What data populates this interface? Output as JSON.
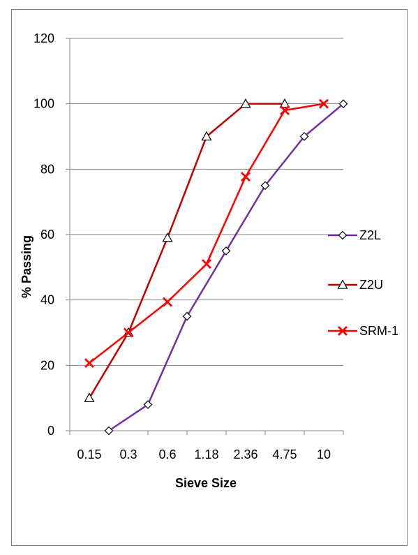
{
  "chart_data": {
    "type": "line",
    "xlabel": "Sieve Size",
    "ylabel": "% Passing",
    "categories": [
      "0.15",
      "0.3",
      "0.6",
      "1.18",
      "2.36",
      "4.75",
      "10"
    ],
    "ylim": [
      0,
      120
    ],
    "yticks": [
      0,
      20,
      40,
      60,
      80,
      100,
      120
    ],
    "grid": true,
    "legend_position": "right",
    "series": [
      {
        "name": "Z2L",
        "color": "#7030a0",
        "marker": "diamond",
        "points": [
          [
            0.5,
            0
          ],
          [
            1.5,
            8
          ],
          [
            2.5,
            35
          ],
          [
            3.5,
            55
          ],
          [
            4.5,
            75
          ],
          [
            5.5,
            90
          ],
          [
            6.5,
            100
          ]
        ]
      },
      {
        "name": "Z2U",
        "color": "#c00000",
        "marker": "triangle",
        "points": [
          [
            0,
            10
          ],
          [
            1,
            30
          ],
          [
            2,
            59
          ],
          [
            3,
            90
          ],
          [
            4,
            100
          ],
          [
            5,
            100
          ]
        ]
      },
      {
        "name": "SRM-1",
        "color": "#ff0000",
        "marker": "x",
        "points": [
          [
            0,
            20.7
          ],
          [
            1,
            30
          ],
          [
            2,
            39.4
          ],
          [
            3,
            51
          ],
          [
            4,
            77.7
          ],
          [
            5,
            98
          ],
          [
            6,
            100
          ]
        ]
      }
    ]
  }
}
